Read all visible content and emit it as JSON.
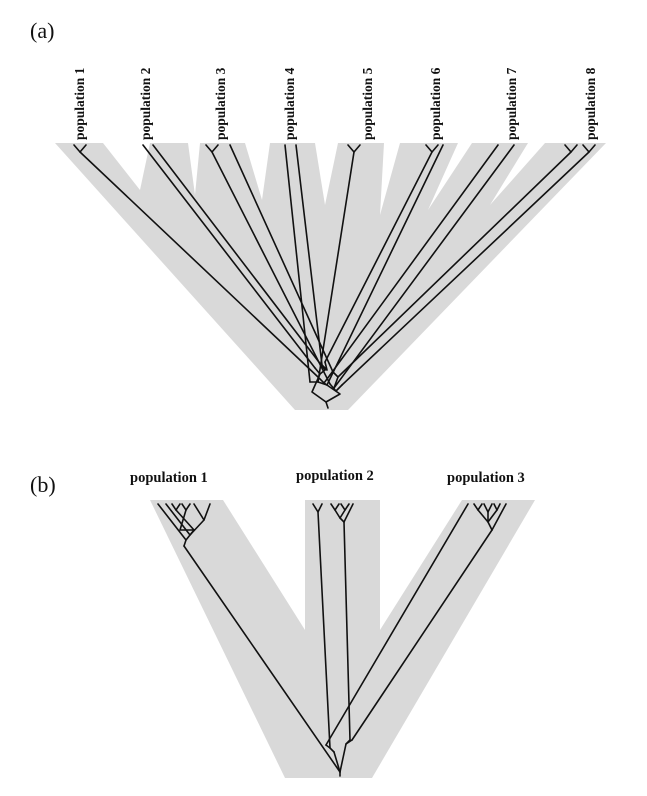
{
  "panel_a": {
    "label": "(a)",
    "populations": [
      "population 1",
      "population 2",
      "population 3",
      "population 4",
      "population 5",
      "population 6",
      "population 7",
      "population 8"
    ]
  },
  "panel_b": {
    "label": "(b)",
    "populations": [
      "population 1",
      "population 2",
      "population 3"
    ]
  }
}
